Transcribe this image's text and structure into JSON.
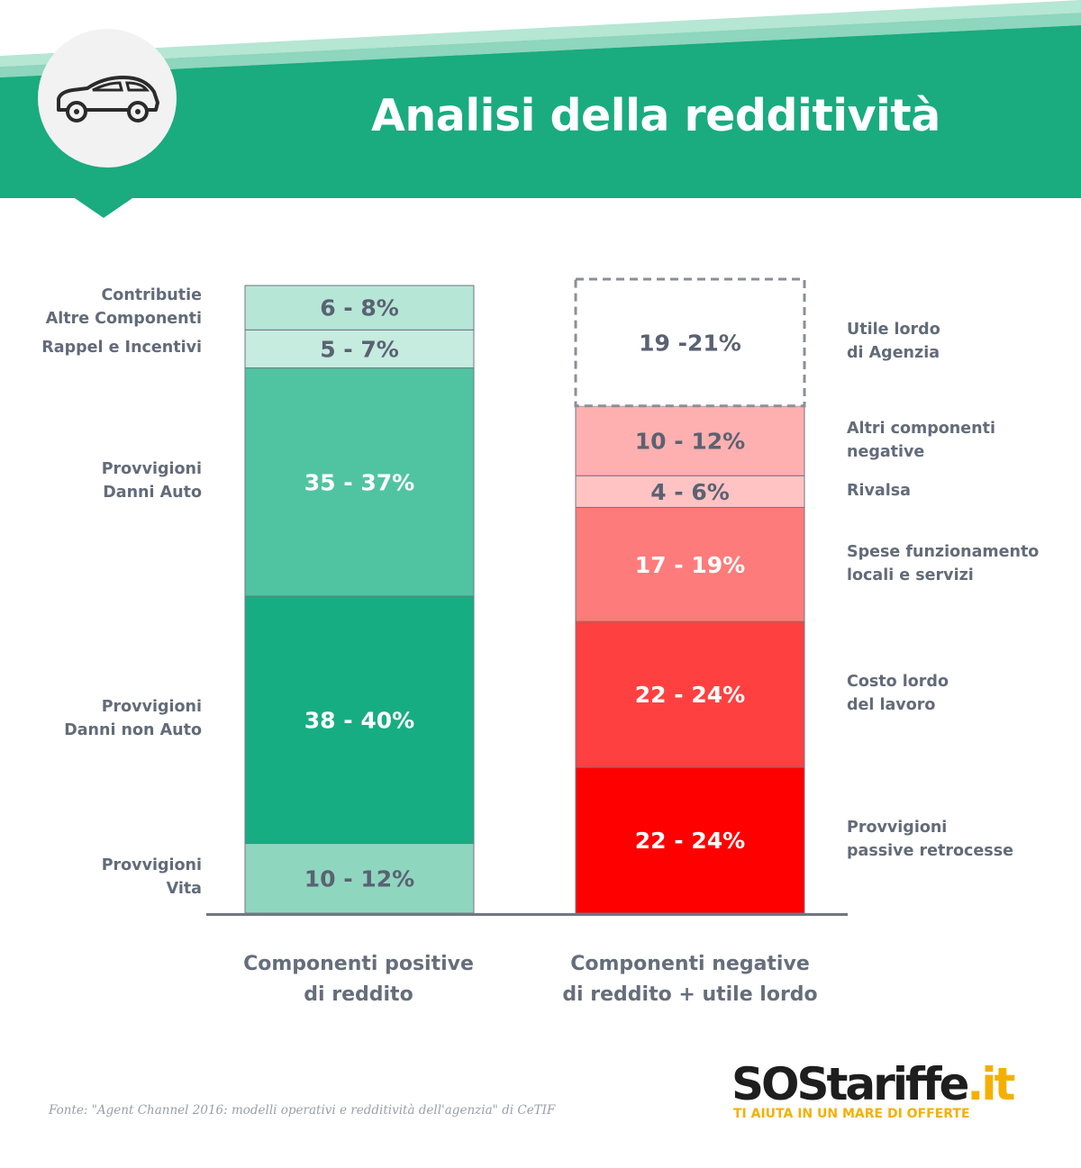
{
  "header": {
    "title": "Analisi della redditività",
    "watermark": "SOStariffe.it",
    "icon": "car-icon",
    "colors": {
      "banner": "#1aab7f",
      "banner_light": "#8ed6bd"
    }
  },
  "chart_data": {
    "type": "bar",
    "stacked": true,
    "title": "Analisi della redditività",
    "categories": [
      "Componenti positive di reddito",
      "Componenti negative di reddito + utile lordo"
    ],
    "stacks": [
      {
        "category": "Componenti positive\ndi reddito",
        "segments": [
          {
            "label": "Provvigioni\nVita",
            "value_text": "10 - 12%",
            "min": 10,
            "max": 12,
            "color": "#8fd6bf",
            "text_color": "#5a6272"
          },
          {
            "label": "Provvigioni\nDanni non Auto",
            "value_text": "38 - 40%",
            "min": 38,
            "max": 40,
            "color": "#17ad82",
            "text_color": "#ffffff"
          },
          {
            "label": "Provvigioni\nDanni Auto",
            "value_text": "35 - 37%",
            "min": 35,
            "max": 37,
            "color": "#50c4a1",
            "text_color": "#ffffff"
          },
          {
            "label": "Rappel e Incentivi",
            "value_text": "5 - 7%",
            "min": 5,
            "max": 7,
            "color": "#c6ebdf",
            "text_color": "#5a6272"
          },
          {
            "label": "Contributie\nAltre Componenti",
            "value_text": "6 - 8%",
            "min": 6,
            "max": 8,
            "color": "#b5e6d6",
            "text_color": "#5a6272"
          }
        ]
      },
      {
        "category": "Componenti negative\ndi reddito + utile lordo",
        "segments": [
          {
            "label": "Provvigioni\npassive retrocesse",
            "value_text": "22 - 24%",
            "min": 22,
            "max": 24,
            "color": "#fe0000",
            "text_color": "#ffffff"
          },
          {
            "label": "Costo lordo\ndel lavoro",
            "value_text": "22 - 24%",
            "min": 22,
            "max": 24,
            "color": "#fe4040",
            "text_color": "#ffffff"
          },
          {
            "label": "Spese funzionamento\nlocali e servizi",
            "value_text": "17 - 19%",
            "min": 17,
            "max": 19,
            "color": "#fe7b7b",
            "text_color": "#ffffff"
          },
          {
            "label": "Rivalsa",
            "value_text": "4 - 6%",
            "min": 4,
            "max": 6,
            "color": "#ffc3c3",
            "text_color": "#5a6272"
          },
          {
            "label": "Altri componenti\nnegative",
            "value_text": "10 - 12%",
            "min": 10,
            "max": 12,
            "color": "#feb0b0",
            "text_color": "#5a6272"
          },
          {
            "label": "Utile lordo\ndi Agenzia",
            "value_text": "19 -21%",
            "min": 19,
            "max": 21,
            "color": "none",
            "dashed": true,
            "text_color": "#5a6272"
          }
        ]
      }
    ],
    "legend": "none",
    "grid": false
  },
  "source": "Fonte: \"Agent Channel 2016: modelli operativi e redditività dell'agenzia\" di CeTIF",
  "logo": {
    "text_main": "SOStariffe",
    "text_suffix": ".it",
    "tagline": "TI AIUTA IN UN MARE DI OFFERTE"
  }
}
